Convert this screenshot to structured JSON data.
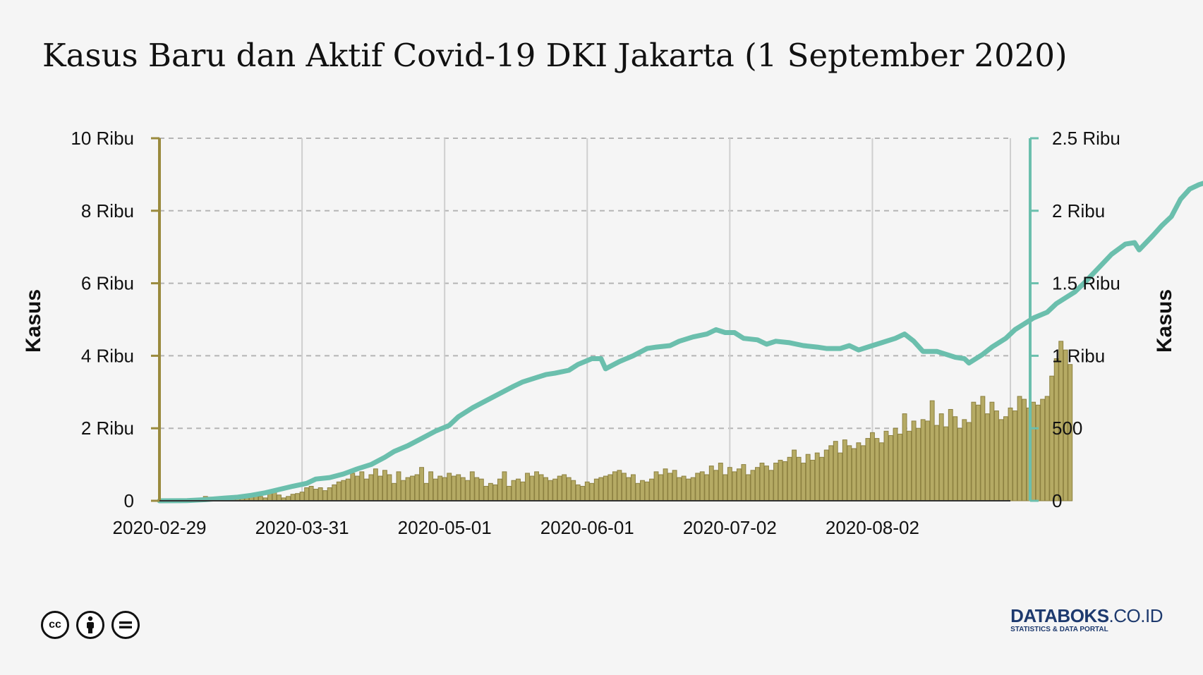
{
  "title": "Kasus Baru dan Aktif Covid-19 DKI Jakarta (1 September 2020)",
  "chart_data": {
    "type": "bar+line",
    "start_date": "2020-02-29",
    "end_date": "2020-09-01",
    "x_tick_labels": [
      "2020-02-29",
      "2020-03-31",
      "2020-05-01",
      "2020-06-01",
      "2020-07-02",
      "2020-08-02"
    ],
    "left_axis": {
      "label": "Kasus",
      "ylim": [
        0,
        10000
      ],
      "ticks": [
        0,
        2000,
        4000,
        6000,
        8000,
        10000
      ],
      "tick_labels": [
        "0",
        "2 Ribu",
        "4 Ribu",
        "6 Ribu",
        "8 Ribu",
        "10 Ribu"
      ]
    },
    "right_axis": {
      "label": "Kasus",
      "ylim": [
        0,
        2500
      ],
      "ticks": [
        0,
        500,
        1000,
        1500,
        2000,
        2500
      ],
      "tick_labels": [
        "0",
        "500",
        "1 Ribu",
        "1.5 Ribu",
        "2 Ribu",
        "2.5 Ribu"
      ]
    },
    "bar_series": {
      "axis": "right",
      "values": [
        2,
        1,
        2,
        1,
        3,
        2,
        1,
        4,
        2,
        10,
        30,
        25,
        8,
        10,
        15,
        20,
        25,
        15,
        30,
        40,
        35,
        45,
        30,
        20,
        60,
        80,
        40,
        20,
        30,
        45,
        50,
        60,
        90,
        100,
        80,
        90,
        70,
        90,
        110,
        130,
        140,
        150,
        190,
        170,
        200,
        150,
        180,
        220,
        170,
        210,
        180,
        120,
        200,
        140,
        160,
        170,
        180,
        230,
        120,
        200,
        150,
        170,
        160,
        190,
        170,
        180,
        160,
        140,
        200,
        160,
        150,
        100,
        120,
        110,
        150,
        200,
        100,
        140,
        150,
        130,
        190,
        170,
        200,
        180,
        160,
        140,
        150,
        170,
        180,
        160,
        140,
        110,
        100,
        130,
        120,
        150,
        160,
        170,
        180,
        200,
        210,
        190,
        160,
        180,
        120,
        140,
        130,
        150,
        200,
        180,
        220,
        190,
        210,
        160,
        170,
        150,
        160,
        190,
        200,
        180,
        240,
        210,
        260,
        180,
        230,
        200,
        220,
        250,
        180,
        210,
        230,
        260,
        240,
        210,
        260,
        280,
        270,
        300,
        350,
        300,
        260,
        320,
        280,
        330,
        300,
        350,
        380,
        410,
        330,
        420,
        380,
        360,
        400,
        380,
        430,
        470,
        430,
        400,
        480,
        450,
        500,
        460,
        600,
        480,
        550,
        500,
        560,
        550,
        690,
        520,
        600,
        510,
        630,
        580,
        500,
        560,
        540,
        680,
        660,
        720,
        600,
        680,
        620,
        560,
        580,
        640,
        620,
        720,
        700,
        640,
        680,
        660,
        700,
        720,
        860,
        980,
        1100,
        1040,
        940
      ],
      "color": "#a09550"
    },
    "line_series": {
      "axis": "right",
      "color": "#6bbfad",
      "points": [
        [
          0,
          0
        ],
        [
          6,
          1
        ],
        [
          10,
          8
        ],
        [
          14,
          18
        ],
        [
          17,
          25
        ],
        [
          20,
          38
        ],
        [
          23,
          55
        ],
        [
          26,
          78
        ],
        [
          29,
          100
        ],
        [
          32,
          120
        ],
        [
          34,
          150
        ],
        [
          37,
          160
        ],
        [
          40,
          185
        ],
        [
          43,
          220
        ],
        [
          46,
          250
        ],
        [
          49,
          300
        ],
        [
          51,
          340
        ],
        [
          54,
          380
        ],
        [
          57,
          430
        ],
        [
          60,
          480
        ],
        [
          63,
          520
        ],
        [
          65,
          580
        ],
        [
          68,
          640
        ],
        [
          71,
          690
        ],
        [
          74,
          740
        ],
        [
          77,
          790
        ],
        [
          79,
          820
        ],
        [
          82,
          850
        ],
        [
          84,
          870
        ],
        [
          86,
          880
        ],
        [
          89,
          900
        ],
        [
          91,
          940
        ],
        [
          94,
          980
        ],
        [
          96,
          980
        ],
        [
          97,
          910
        ],
        [
          100,
          960
        ],
        [
          103,
          1000
        ],
        [
          106,
          1050
        ],
        [
          108,
          1060
        ],
        [
          111,
          1070
        ],
        [
          113,
          1100
        ],
        [
          116,
          1130
        ],
        [
          119,
          1150
        ],
        [
          121,
          1180
        ],
        [
          123,
          1160
        ],
        [
          125,
          1160
        ],
        [
          127,
          1120
        ],
        [
          130,
          1110
        ],
        [
          132,
          1080
        ],
        [
          134,
          1100
        ],
        [
          137,
          1090
        ],
        [
          140,
          1070
        ],
        [
          143,
          1060
        ],
        [
          145,
          1050
        ],
        [
          148,
          1050
        ],
        [
          150,
          1070
        ],
        [
          152,
          1040
        ],
        [
          155,
          1070
        ],
        [
          157,
          1090
        ],
        [
          160,
          1120
        ],
        [
          162,
          1150
        ],
        [
          164,
          1100
        ],
        [
          166,
          1030
        ],
        [
          169,
          1030
        ],
        [
          171,
          1010
        ],
        [
          173,
          990
        ],
        [
          175,
          980
        ],
        [
          176,
          950
        ],
        [
          179,
          1010
        ],
        [
          181,
          1060
        ],
        [
          184,
          1120
        ],
        [
          186,
          1180
        ],
        [
          188,
          1220
        ],
        [
          190,
          1260
        ],
        [
          193,
          1300
        ],
        [
          195,
          1360
        ],
        [
          197,
          1400
        ],
        [
          199,
          1440
        ],
        [
          201,
          1500
        ],
        [
          204,
          1600
        ],
        [
          207,
          1700
        ],
        [
          210,
          1770
        ],
        [
          212,
          1780
        ],
        [
          213,
          1730
        ],
        [
          216,
          1830
        ],
        [
          218,
          1900
        ],
        [
          220,
          1960
        ],
        [
          222,
          2080
        ],
        [
          224,
          2150
        ],
        [
          226,
          2180
        ],
        [
          228,
          2200
        ],
        [
          230,
          2230
        ],
        [
          232,
          2240
        ],
        [
          234,
          2250
        ],
        [
          236,
          2270
        ],
        [
          238,
          2290
        ],
        [
          239,
          2250
        ],
        [
          241,
          2240
        ],
        [
          243,
          2220
        ],
        [
          245,
          2260
        ],
        [
          247,
          2240
        ],
        [
          249,
          2220
        ],
        [
          251,
          1950
        ],
        [
          253,
          1920
        ],
        [
          254,
          1860
        ],
        [
          256,
          1750
        ],
        [
          258,
          1800
        ],
        [
          260,
          2100
        ],
        [
          262,
          2170
        ],
        [
          264,
          2180
        ]
      ],
      "line_points_rescaled_note": ""
    },
    "grid": {
      "horizontal": "dashed",
      "vertical": "solid"
    },
    "legend": "none"
  },
  "footer": {
    "license_icons": [
      "cc-icon",
      "by-icon",
      "nd-icon"
    ],
    "brand_bold": "DATABOKS",
    "brand_suffix": ".CO.ID",
    "brand_sub": "STATISTICS & DATA PORTAL"
  }
}
